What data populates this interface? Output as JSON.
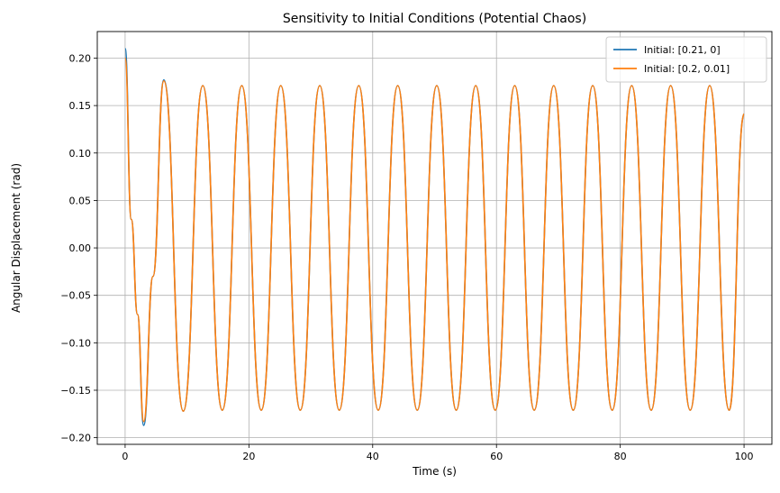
{
  "chart_data": {
    "type": "line",
    "title": "Sensitivity to Initial Conditions (Potential Chaos)",
    "xlabel": "Time (s)",
    "ylabel": "Angular Displacement (rad)",
    "xlim": [
      -4.5,
      104.5
    ],
    "ylim": [
      -0.207,
      0.228
    ],
    "xticks": [
      0,
      20,
      40,
      60,
      80,
      100
    ],
    "yticks": [
      -0.2,
      -0.15,
      -0.1,
      -0.05,
      0.0,
      0.05,
      0.1,
      0.15,
      0.2
    ],
    "xtick_labels": [
      "0",
      "20",
      "40",
      "60",
      "80",
      "100"
    ],
    "ytick_labels": [
      "−0.20",
      "−0.15",
      "−0.10",
      "−0.05",
      "0.00",
      "0.05",
      "0.10",
      "0.15",
      "0.20"
    ],
    "grid": true,
    "legend_position": "top-right",
    "series": [
      {
        "name": "Initial: [0.21, 0]",
        "color": "#1f77b4",
        "x": [
          0,
          1,
          2,
          3,
          4.5,
          6.25,
          9.4,
          12.55,
          15.7,
          18.85,
          22.0,
          25.15,
          28.3,
          31.45,
          34.6,
          37.75,
          40.9,
          44.05,
          47.2,
          50.35,
          53.5,
          56.65,
          59.8,
          62.95,
          66.1,
          69.25,
          72.4,
          75.55,
          78.7,
          81.85,
          85.0,
          88.15,
          91.3,
          94.45,
          97.6,
          100
        ],
        "y": [
          0.21,
          0.03,
          -0.07,
          -0.187,
          -0.03,
          0.177,
          -0.172,
          0.171,
          -0.171,
          0.171,
          -0.171,
          0.171,
          -0.171,
          0.171,
          -0.171,
          0.171,
          -0.171,
          0.171,
          -0.171,
          0.171,
          -0.171,
          0.171,
          -0.171,
          0.171,
          -0.171,
          0.171,
          -0.171,
          0.171,
          -0.171,
          0.171,
          -0.171,
          0.171,
          -0.171,
          0.171,
          -0.171,
          0.141
        ]
      },
      {
        "name": "Initial: [0.2, 0.01]",
        "color": "#ff7f0e",
        "x": [
          0,
          1,
          2,
          3,
          4.5,
          6.25,
          9.4,
          12.55,
          15.7,
          18.85,
          22.0,
          25.15,
          28.3,
          31.45,
          34.6,
          37.75,
          40.9,
          44.05,
          47.2,
          50.35,
          53.5,
          56.65,
          59.8,
          62.95,
          66.1,
          69.25,
          72.4,
          75.55,
          78.7,
          81.85,
          85.0,
          88.15,
          91.3,
          94.45,
          97.6,
          100
        ],
        "y": [
          0.2,
          0.03,
          -0.07,
          -0.183,
          -0.03,
          0.176,
          -0.172,
          0.171,
          -0.171,
          0.171,
          -0.171,
          0.171,
          -0.171,
          0.171,
          -0.171,
          0.171,
          -0.171,
          0.171,
          -0.171,
          0.171,
          -0.171,
          0.171,
          -0.171,
          0.171,
          -0.171,
          0.171,
          -0.171,
          0.171,
          -0.171,
          0.171,
          -0.171,
          0.171,
          -0.171,
          0.171,
          -0.171,
          0.141
        ]
      }
    ]
  }
}
